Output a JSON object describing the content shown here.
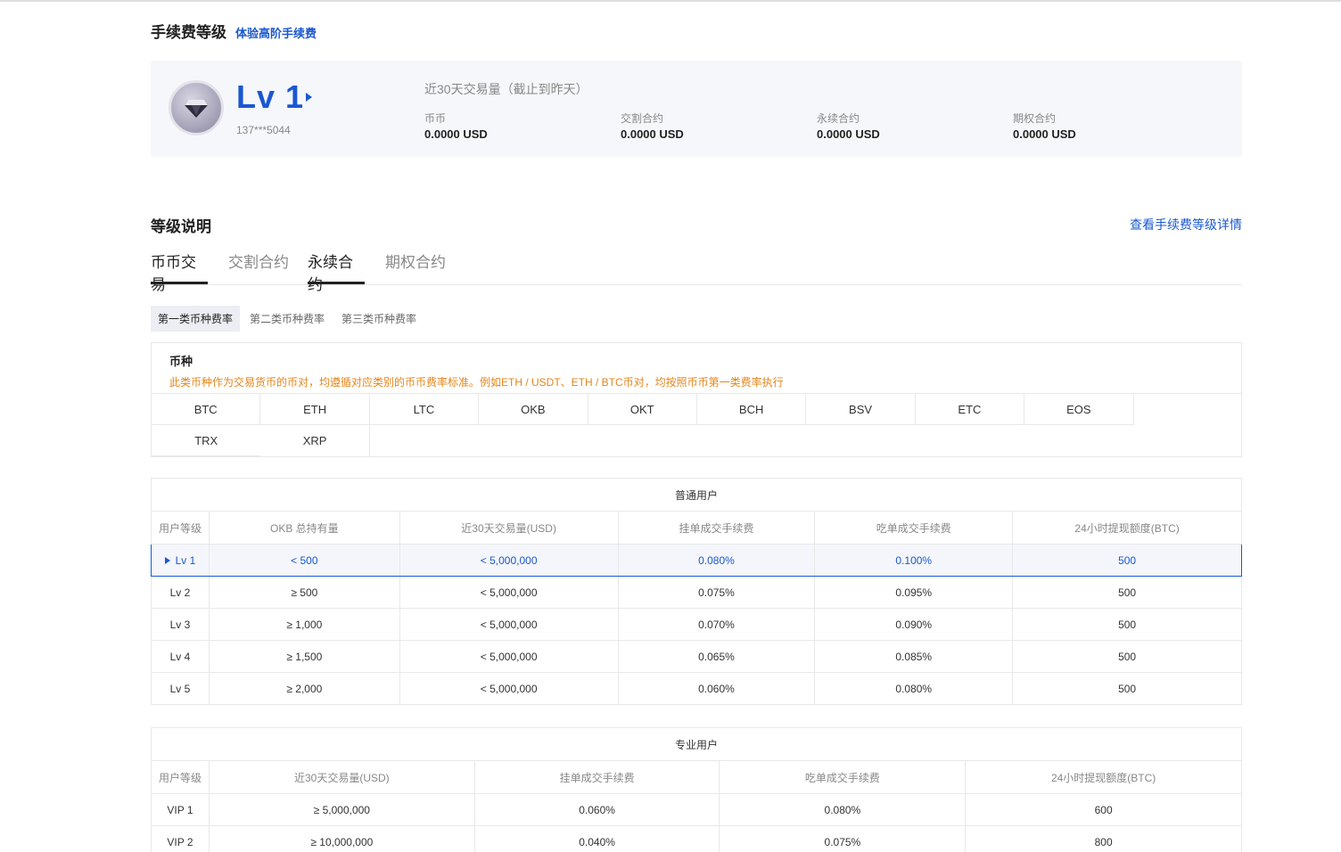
{
  "header": {
    "title": "手续费等级",
    "link": "体验高阶手续费"
  },
  "level_card": {
    "level": "Lv 1",
    "account": "137***5044",
    "volume_title": "近30天交易量（截止到昨天）",
    "stats": [
      {
        "label": "币币",
        "value": "0.0000 USD"
      },
      {
        "label": "交割合约",
        "value": "0.0000 USD"
      },
      {
        "label": "永续合约",
        "value": "0.0000 USD"
      },
      {
        "label": "期权合约",
        "value": "0.0000 USD"
      }
    ]
  },
  "section": {
    "title": "等级说明",
    "detail_link": "查看手续费等级详情"
  },
  "tabs": [
    "币币交易",
    "交割合约",
    "永续合约",
    "期权合约"
  ],
  "subtabs": [
    "第一类币种费率",
    "第二类币种费率",
    "第三类币种费率"
  ],
  "coins": {
    "heading": "币种",
    "note": "此类币种作为交易货币的币对，均遵循对应类别的币币费率标准。例如ETH / USDT、ETH / BTC币对，均按照币币第一类费率执行",
    "list": [
      "BTC",
      "ETH",
      "LTC",
      "OKB",
      "OKT",
      "BCH",
      "BSV",
      "ETC",
      "EOS",
      "TRX",
      "XRP"
    ]
  },
  "normal_table": {
    "caption": "普通用户",
    "headers": [
      "用户等级",
      "OKB 总持有量",
      "近30天交易量(USD)",
      "挂单成交手续费",
      "吃单成交手续费",
      "24小时提现额度(BTC)"
    ],
    "rows": [
      [
        "Lv 1",
        "< 500",
        "< 5,000,000",
        "0.080%",
        "0.100%",
        "500"
      ],
      [
        "Lv 2",
        "≥ 500",
        "< 5,000,000",
        "0.075%",
        "0.095%",
        "500"
      ],
      [
        "Lv 3",
        "≥ 1,000",
        "< 5,000,000",
        "0.070%",
        "0.090%",
        "500"
      ],
      [
        "Lv 4",
        "≥ 1,500",
        "< 5,000,000",
        "0.065%",
        "0.085%",
        "500"
      ],
      [
        "Lv 5",
        "≥ 2,000",
        "< 5,000,000",
        "0.060%",
        "0.080%",
        "500"
      ]
    ]
  },
  "pro_table": {
    "caption": "专业用户",
    "headers": [
      "用户等级",
      "近30天交易量(USD)",
      "挂单成交手续费",
      "吃单成交手续费",
      "24小时提现额度(BTC)"
    ],
    "rows": [
      [
        "VIP 1",
        "≥ 5,000,000",
        "0.060%",
        "0.080%",
        "600"
      ],
      [
        "VIP 2",
        "≥ 10,000,000",
        "0.040%",
        "0.075%",
        "800"
      ]
    ]
  },
  "colors": {
    "accent": "#1a58d1",
    "note": "#e5851a"
  }
}
